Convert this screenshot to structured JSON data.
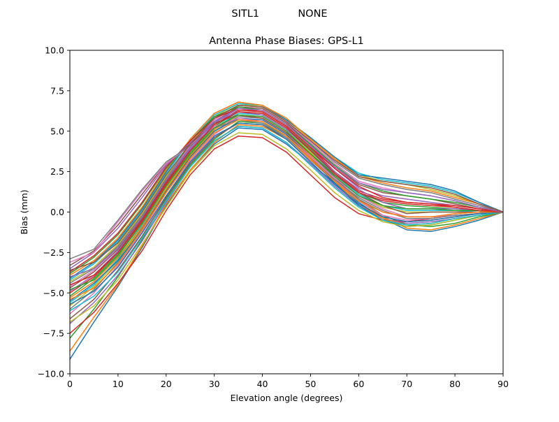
{
  "figure": {
    "suptitle": "SITL1            NONE"
  },
  "chart_data": {
    "type": "line",
    "title": "Antenna Phase Biases: GPS-L1",
    "xlabel": "Elevation angle (degrees)",
    "ylabel": "Bias (mm)",
    "xlim": [
      0,
      90
    ],
    "ylim": [
      -10,
      10
    ],
    "xticks": [
      0,
      10,
      20,
      30,
      40,
      50,
      60,
      70,
      80,
      90
    ],
    "yticks": [
      -10.0,
      -7.5,
      -5.0,
      -2.5,
      0.0,
      2.5,
      5.0,
      7.5,
      10.0
    ],
    "xtick_labels": [
      "0",
      "10",
      "20",
      "30",
      "40",
      "50",
      "60",
      "70",
      "80",
      "90"
    ],
    "ytick_labels": [
      "−10.0",
      "−7.5",
      "−5.0",
      "−2.5",
      "0.0",
      "2.5",
      "5.0",
      "7.5",
      "10.0"
    ],
    "grid": false,
    "legend": "none",
    "colors": [
      "#1f77b4",
      "#ff7f0e",
      "#2ca02c",
      "#d62728",
      "#9467bd",
      "#8c564b",
      "#e377c2",
      "#7f7f7f",
      "#bcbd22",
      "#17becf"
    ],
    "x": [
      0,
      5,
      10,
      15,
      20,
      25,
      30,
      35,
      40,
      45,
      50,
      55,
      60,
      65,
      70,
      75,
      80,
      85,
      90
    ],
    "series": [
      {
        "values": [
          -9.1,
          -6.8,
          -4.6,
          -2.2,
          0.4,
          2.6,
          4.2,
          5.2,
          5.1,
          4.2,
          3.0,
          1.8,
          0.6,
          -0.4,
          -1.1,
          -1.2,
          -0.9,
          -0.5,
          0.0
        ]
      },
      {
        "values": [
          -8.6,
          -6.5,
          -4.5,
          -2.1,
          0.5,
          2.6,
          4.3,
          5.4,
          5.3,
          4.5,
          3.2,
          1.9,
          0.7,
          -0.3,
          -1.0,
          -1.1,
          -0.8,
          -0.4,
          0.0
        ]
      },
      {
        "values": [
          -7.8,
          -6.0,
          -4.0,
          -1.7,
          0.8,
          2.9,
          4.5,
          5.6,
          5.5,
          4.7,
          3.4,
          2.0,
          0.8,
          -0.2,
          -0.8,
          -0.9,
          -0.7,
          -0.3,
          0.0
        ]
      },
      {
        "values": [
          -7.5,
          -6.2,
          -4.4,
          -2.4,
          0.1,
          2.3,
          3.9,
          4.7,
          4.6,
          3.7,
          2.3,
          0.9,
          -0.1,
          -0.5,
          -0.6,
          -0.4,
          -0.2,
          -0.1,
          0.0
        ]
      },
      {
        "values": [
          -6.9,
          -5.6,
          -3.9,
          -1.8,
          0.6,
          2.8,
          4.4,
          5.3,
          5.2,
          4.3,
          3.0,
          1.6,
          0.4,
          -0.4,
          -0.7,
          -0.6,
          -0.4,
          -0.2,
          0.0
        ]
      },
      {
        "values": [
          -6.6,
          -5.4,
          -3.6,
          -1.5,
          0.9,
          3.0,
          4.6,
          5.5,
          5.4,
          4.6,
          3.3,
          1.8,
          0.5,
          -0.3,
          -0.6,
          -0.5,
          -0.3,
          -0.1,
          0.0
        ]
      },
      {
        "values": [
          -6.3,
          -5.0,
          -3.3,
          -1.2,
          1.2,
          3.2,
          4.8,
          5.8,
          5.7,
          4.8,
          3.5,
          2.0,
          0.7,
          -0.2,
          -0.5,
          -0.4,
          -0.2,
          -0.1,
          0.0
        ]
      },
      {
        "values": [
          -6.0,
          -4.8,
          -3.1,
          -1.0,
          1.3,
          3.4,
          5.0,
          5.9,
          5.8,
          4.9,
          3.6,
          2.1,
          0.8,
          0.0,
          -0.3,
          -0.3,
          -0.2,
          -0.1,
          0.0
        ]
      },
      {
        "values": [
          -5.8,
          -4.6,
          -3.0,
          -0.9,
          1.5,
          3.5,
          5.1,
          6.0,
          5.9,
          5.0,
          3.7,
          2.2,
          1.0,
          0.3,
          0.0,
          0.0,
          0.0,
          0.0,
          0.0
        ]
      },
      {
        "values": [
          -5.6,
          -4.5,
          -2.9,
          -0.8,
          1.6,
          3.6,
          5.2,
          6.1,
          6.0,
          5.1,
          3.8,
          2.3,
          1.1,
          0.4,
          0.1,
          0.1,
          0.1,
          0.0,
          0.0
        ]
      },
      {
        "values": [
          -5.5,
          -4.4,
          -3.0,
          -1.1,
          1.3,
          3.4,
          5.0,
          5.8,
          5.7,
          4.8,
          3.4,
          1.8,
          0.4,
          -0.5,
          -0.9,
          -0.8,
          -0.5,
          -0.2,
          0.0
        ]
      },
      {
        "values": [
          -5.3,
          -4.3,
          -2.8,
          -0.9,
          1.4,
          3.5,
          5.1,
          6.0,
          5.8,
          4.9,
          3.5,
          1.9,
          0.5,
          -0.4,
          -0.8,
          -0.7,
          -0.4,
          -0.2,
          0.0
        ]
      },
      {
        "values": [
          -5.2,
          -4.1,
          -2.6,
          -0.7,
          1.6,
          3.7,
          5.3,
          6.2,
          6.1,
          5.2,
          3.9,
          2.4,
          1.2,
          0.6,
          0.4,
          0.3,
          0.2,
          0.1,
          0.0
        ]
      },
      {
        "values": [
          -5.0,
          -4.0,
          -2.5,
          -0.6,
          1.7,
          3.8,
          5.4,
          6.3,
          6.2,
          5.3,
          4.0,
          2.5,
          1.3,
          0.8,
          0.6,
          0.5,
          0.3,
          0.1,
          0.0
        ]
      },
      {
        "values": [
          -4.9,
          -3.9,
          -2.4,
          -0.5,
          1.8,
          3.9,
          5.5,
          6.4,
          6.3,
          5.4,
          4.1,
          2.7,
          1.5,
          1.0,
          0.8,
          0.6,
          0.4,
          0.2,
          0.0
        ]
      },
      {
        "values": [
          -4.7,
          -3.7,
          -2.3,
          -0.4,
          1.9,
          4.0,
          5.6,
          6.5,
          6.4,
          5.5,
          4.2,
          2.8,
          1.7,
          1.2,
          1.0,
          0.8,
          0.5,
          0.2,
          0.0
        ]
      },
      {
        "values": [
          -4.6,
          -3.6,
          -2.2,
          -0.3,
          2.0,
          4.1,
          5.7,
          6.6,
          6.5,
          5.6,
          4.3,
          3.0,
          1.9,
          1.5,
          1.2,
          1.0,
          0.7,
          0.3,
          0.0
        ]
      },
      {
        "values": [
          -4.4,
          -3.5,
          -2.1,
          -0.2,
          2.1,
          4.2,
          5.8,
          6.6,
          6.5,
          5.6,
          4.4,
          3.1,
          2.1,
          1.7,
          1.4,
          1.2,
          0.8,
          0.4,
          0.0
        ]
      },
      {
        "values": [
          -4.3,
          -3.4,
          -2.0,
          -0.1,
          2.2,
          4.3,
          5.9,
          6.7,
          6.5,
          5.7,
          4.5,
          3.3,
          2.3,
          1.9,
          1.7,
          1.4,
          1.0,
          0.5,
          0.0
        ]
      },
      {
        "values": [
          -4.2,
          -3.2,
          -1.8,
          0.1,
          2.4,
          4.4,
          6.0,
          6.7,
          6.6,
          5.7,
          4.6,
          3.4,
          2.4,
          2.0,
          1.8,
          1.6,
          1.2,
          0.6,
          0.0
        ]
      },
      {
        "values": [
          -4.1,
          -3.1,
          -1.7,
          0.2,
          2.5,
          4.5,
          6.1,
          6.8,
          6.6,
          5.7,
          4.6,
          3.4,
          2.3,
          2.1,
          1.9,
          1.7,
          1.3,
          0.6,
          0.0
        ]
      },
      {
        "values": [
          -3.9,
          -3.0,
          -1.6,
          0.3,
          2.6,
          4.5,
          6.1,
          6.8,
          6.6,
          5.8,
          4.5,
          3.3,
          2.2,
          1.8,
          1.5,
          1.3,
          0.9,
          0.5,
          0.0
        ]
      },
      {
        "values": [
          -3.8,
          -2.8,
          -1.4,
          0.5,
          2.7,
          4.4,
          5.9,
          6.5,
          6.3,
          5.4,
          4.2,
          2.9,
          1.8,
          1.3,
          1.0,
          0.8,
          0.6,
          0.3,
          0.0
        ]
      },
      {
        "values": [
          -3.7,
          -2.7,
          -1.3,
          0.6,
          2.8,
          4.4,
          5.8,
          6.4,
          6.2,
          5.3,
          4.0,
          2.7,
          1.6,
          0.9,
          0.6,
          0.5,
          0.4,
          0.2,
          0.0
        ]
      },
      {
        "values": [
          -3.5,
          -2.5,
          -1.0,
          0.9,
          2.9,
          4.3,
          5.6,
          6.2,
          6.0,
          5.1,
          3.8,
          2.5,
          1.4,
          0.6,
          0.2,
          0.2,
          0.2,
          0.1,
          0.0
        ]
      },
      {
        "values": [
          -3.3,
          -2.4,
          -0.8,
          1.1,
          3.0,
          4.2,
          5.5,
          6.0,
          5.8,
          4.9,
          3.6,
          2.3,
          1.2,
          0.4,
          -0.1,
          0.0,
          0.0,
          0.0,
          0.0
        ]
      },
      {
        "values": [
          -3.1,
          -2.5,
          -0.6,
          1.3,
          3.0,
          4.1,
          5.3,
          5.8,
          5.6,
          4.7,
          3.4,
          2.1,
          1.0,
          0.2,
          -0.3,
          -0.3,
          -0.2,
          -0.1,
          0.0
        ]
      },
      {
        "values": [
          -2.9,
          -2.3,
          -0.5,
          1.4,
          3.1,
          4.1,
          5.2,
          5.7,
          5.5,
          4.6,
          3.3,
          2.0,
          0.9,
          0.1,
          -0.4,
          -0.4,
          -0.2,
          -0.1,
          0.0
        ]
      },
      {
        "values": [
          -6.8,
          -5.8,
          -4.2,
          -2.0,
          0.3,
          2.5,
          4.1,
          4.9,
          4.8,
          3.9,
          2.6,
          1.2,
          0.1,
          -0.6,
          -0.9,
          -0.8,
          -0.5,
          -0.2,
          0.0
        ]
      },
      {
        "values": [
          -6.1,
          -5.2,
          -3.7,
          -1.6,
          0.7,
          2.8,
          4.4,
          5.3,
          5.2,
          4.3,
          2.9,
          1.5,
          0.3,
          -0.5,
          -0.8,
          -0.7,
          -0.4,
          -0.2,
          0.0
        ]
      },
      {
        "values": [
          -5.7,
          -4.9,
          -3.4,
          -1.3,
          1.0,
          3.1,
          4.7,
          5.5,
          5.4,
          4.5,
          3.1,
          1.7,
          0.5,
          -0.3,
          -0.6,
          -0.5,
          -0.3,
          -0.1,
          0.0
        ]
      },
      {
        "values": [
          -5.4,
          -4.7,
          -3.2,
          -1.1,
          1.2,
          3.3,
          4.9,
          5.7,
          5.6,
          4.7,
          3.3,
          1.9,
          0.7,
          0.0,
          -0.3,
          -0.3,
          -0.1,
          0.0,
          0.0
        ]
      },
      {
        "values": [
          -4.8,
          -4.2,
          -2.7,
          -0.7,
          1.6,
          3.6,
          5.2,
          6.0,
          5.9,
          5.0,
          3.6,
          2.2,
          1.0,
          0.4,
          0.2,
          0.2,
          0.1,
          0.1,
          0.0
        ]
      },
      {
        "values": [
          -4.5,
          -3.9,
          -2.5,
          -0.5,
          1.8,
          3.8,
          5.4,
          6.2,
          6.1,
          5.2,
          3.8,
          2.4,
          1.2,
          0.7,
          0.5,
          0.4,
          0.3,
          0.1,
          0.0
        ]
      },
      {
        "values": [
          -4.0,
          -3.5,
          -2.2,
          -0.3,
          2.0,
          4.0,
          5.6,
          6.4,
          6.3,
          5.4,
          4.1,
          2.8,
          1.8,
          1.4,
          1.2,
          1.0,
          0.7,
          0.3,
          0.0
        ]
      },
      {
        "values": [
          -3.6,
          -3.1,
          -1.9,
          0.0,
          2.3,
          4.2,
          5.8,
          6.6,
          6.5,
          5.6,
          4.4,
          3.2,
          2.2,
          1.9,
          1.7,
          1.5,
          1.1,
          0.5,
          0.0
        ]
      }
    ]
  }
}
